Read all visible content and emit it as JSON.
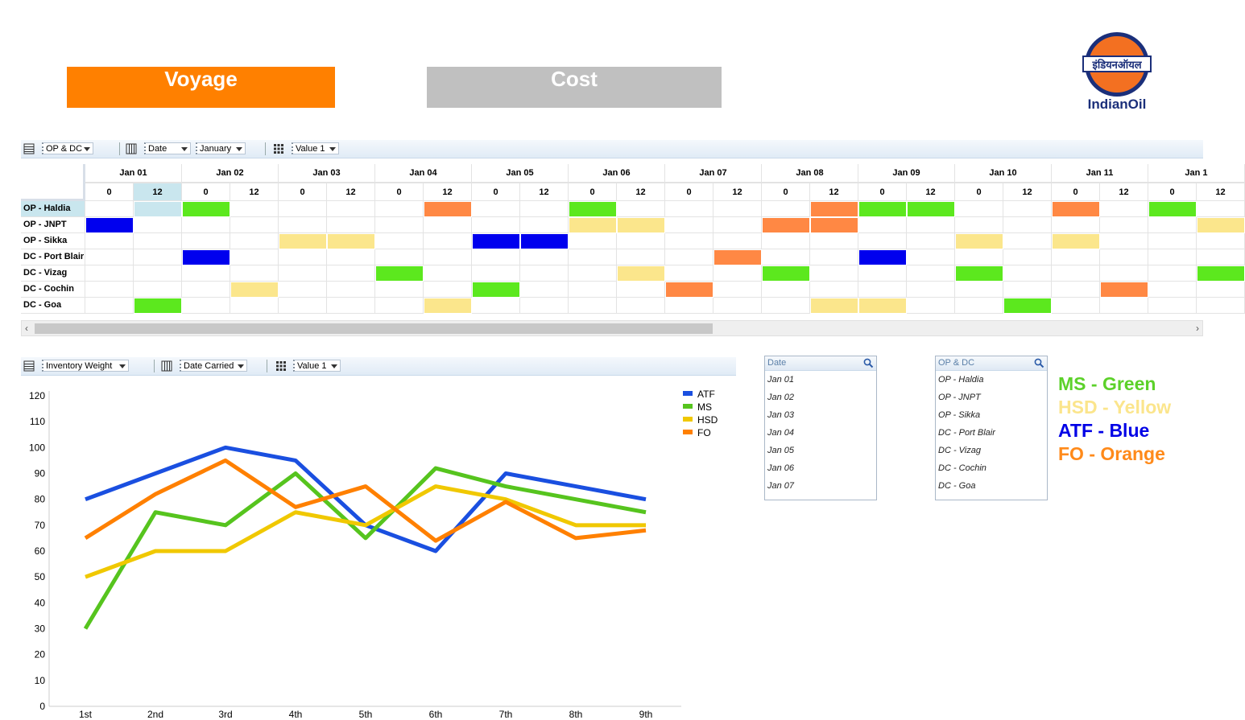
{
  "tabs": {
    "voyage": "Voyage",
    "cost": "Cost"
  },
  "logo": {
    "hindi_text": "इंडियनऑयल",
    "text": "IndianOil"
  },
  "pivot_toolbar": {
    "rows_field": "OP & DC",
    "cols_field": "Date",
    "cols_filter": "January",
    "values_field": "Value 1"
  },
  "grid": {
    "days": [
      "Jan 01",
      "Jan 02",
      "Jan 03",
      "Jan 04",
      "Jan 05",
      "Jan 06",
      "Jan 07",
      "Jan 08",
      "Jan 09",
      "Jan 10",
      "Jan 11",
      "Jan 1"
    ],
    "hours": [
      "0",
      "12"
    ],
    "rows": [
      {
        "label": "OP - Haldia",
        "cells": [
          "",
          "sel",
          "G",
          "",
          "",
          "",
          "",
          "O",
          "",
          "",
          "G",
          "",
          "",
          "",
          "",
          "O",
          "G",
          "G",
          "",
          "",
          "O",
          "",
          "G"
        ]
      },
      {
        "label": "OP - JNPT",
        "cells": [
          "B",
          "",
          "",
          "",
          "",
          "",
          "",
          "",
          "",
          "",
          "Y",
          "Y",
          "",
          "",
          "O",
          "O",
          "",
          "",
          "",
          "",
          "",
          "",
          "",
          "Y"
        ]
      },
      {
        "label": "OP - Sikka",
        "cells": [
          "",
          "",
          "",
          "",
          "Y",
          "Y",
          "",
          "",
          "B",
          "B",
          "",
          "",
          "",
          "",
          "",
          "",
          "",
          "",
          "Y",
          "",
          "Y",
          "",
          ""
        ]
      },
      {
        "label": "DC - Port Blair",
        "cells": [
          "",
          "",
          "B",
          "",
          "",
          "",
          "",
          "",
          "",
          "",
          "",
          "",
          "",
          "O",
          "",
          "",
          "B",
          "",
          "",
          "",
          "",
          "",
          ""
        ]
      },
      {
        "label": "DC - Vizag",
        "cells": [
          "",
          "",
          "",
          "",
          "",
          "",
          "G",
          "",
          "",
          "",
          "",
          "Y",
          "",
          "",
          "G",
          "",
          "",
          "",
          "G",
          "",
          "",
          "",
          "",
          "G"
        ]
      },
      {
        "label": "DC - Cochin",
        "cells": [
          "",
          "",
          "",
          "Y",
          "",
          "",
          "",
          "",
          "G",
          "",
          "",
          "",
          "O",
          "",
          "",
          "",
          "",
          "",
          "",
          "",
          "",
          "O",
          ""
        ]
      },
      {
        "label": "DC - Goa",
        "cells": [
          "",
          "G",
          "",
          "",
          "",
          "",
          "",
          "Y",
          "",
          "",
          "",
          "",
          "",
          "",
          "",
          "Y",
          "Y",
          "",
          "",
          "G",
          "",
          "",
          ""
        ]
      }
    ]
  },
  "chart_toolbar": {
    "rows_field": "Inventory Weight",
    "cols_field": "Date Carried",
    "values_field": "Value 1"
  },
  "date_filter": {
    "title": "Date",
    "items": [
      "Jan 01",
      "Jan 02",
      "Jan 03",
      "Jan 04",
      "Jan 05",
      "Jan 06",
      "Jan 07"
    ]
  },
  "opdc_filter": {
    "title": "OP & DC",
    "items": [
      "OP - Haldia",
      "OP - JNPT",
      "OP - Sikka",
      "DC - Port Blair",
      "DC - Vizag",
      "DC - Cochin",
      "DC - Goa"
    ]
  },
  "color_legend": [
    {
      "text": "MS - Green",
      "color": "#5cd12a"
    },
    {
      "text": "HSD - Yellow",
      "color": "#fbe58c"
    },
    {
      "text": "ATF - Blue",
      "color": "#0000e6"
    },
    {
      "text": "FO - Orange",
      "color": "#ff8a1a"
    }
  ],
  "cell_colors": {
    "G": "#5ce81e",
    "O": "#ff8844",
    "B": "#0000ee",
    "Y": "#fbe68c",
    "sel": "#c9e6ee"
  },
  "chart_data": {
    "type": "line",
    "categories": [
      "1st",
      "2nd",
      "3rd",
      "4th",
      "5th",
      "6th",
      "7th",
      "8th",
      "9th"
    ],
    "ylim": [
      0,
      120
    ],
    "yticks": [
      0,
      10,
      20,
      30,
      40,
      50,
      60,
      70,
      80,
      90,
      100,
      110,
      120
    ],
    "legend_position": "top-right",
    "series": [
      {
        "name": "ATF",
        "color": "#1a4fe0",
        "values": [
          80,
          90,
          100,
          95,
          70,
          60,
          90,
          85,
          80
        ]
      },
      {
        "name": "MS",
        "color": "#56c41e",
        "values": [
          30,
          75,
          70,
          90,
          65,
          92,
          85,
          80,
          75
        ]
      },
      {
        "name": "HSD",
        "color": "#f0c800",
        "values": [
          50,
          60,
          60,
          75,
          70,
          85,
          80,
          70,
          70
        ]
      },
      {
        "name": "FO",
        "color": "#ff8000",
        "values": [
          65,
          82,
          95,
          77,
          85,
          64,
          79,
          65,
          68
        ]
      }
    ]
  }
}
